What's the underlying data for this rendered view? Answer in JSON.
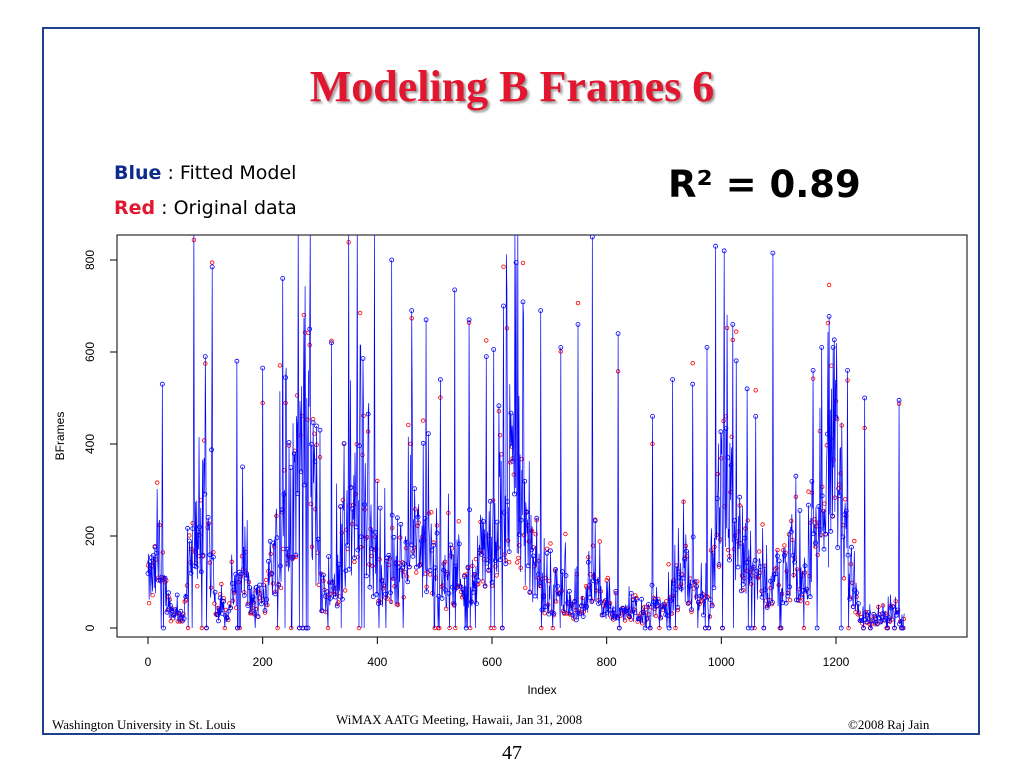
{
  "slide": {
    "title": "Modeling B Frames 6",
    "legend": {
      "blue_key": "Blue",
      "blue_text": " : Fitted Model",
      "red_key": "Red",
      "red_text": "  :  Original data"
    },
    "r_squared": "R² = 0.89",
    "footer_left": "Washington University in St. Louis",
    "footer_center": "WiMAX AATG Meeting, Hawaii, Jan 31, 2008",
    "footer_right": "©2008 Raj Jain",
    "page_number": "47"
  },
  "colors": {
    "title": "#e2162e",
    "blue_series": "#0000ff",
    "red_series": "#ff0000",
    "frame": "#1f3f8f"
  },
  "chart_data": {
    "type": "line",
    "xlabel": "Index",
    "ylabel": "BFrames",
    "xlim": [
      -20,
      1340
    ],
    "ylim": [
      -20,
      880
    ],
    "x_ticks": [
      0,
      200,
      400,
      600,
      800,
      1000,
      1200
    ],
    "y_ticks": [
      0,
      200,
      400,
      600,
      800
    ],
    "n_points": 1320,
    "series": [
      {
        "color": "#0000ff",
        "style": "line with open circle markers",
        "approx_profile": [
          [
            0,
            100
          ],
          [
            20,
            120
          ],
          [
            40,
            40
          ],
          [
            60,
            20
          ],
          [
            80,
            200
          ],
          [
            100,
            240
          ],
          [
            120,
            40
          ],
          [
            140,
            20
          ],
          [
            160,
            150
          ],
          [
            180,
            60
          ],
          [
            200,
            60
          ],
          [
            220,
            160
          ],
          [
            240,
            280
          ],
          [
            260,
            300
          ],
          [
            270,
            520
          ],
          [
            280,
            420
          ],
          [
            300,
            80
          ],
          [
            320,
            60
          ],
          [
            340,
            160
          ],
          [
            360,
            250
          ],
          [
            370,
            400
          ],
          [
            380,
            220
          ],
          [
            400,
            120
          ],
          [
            420,
            100
          ],
          [
            440,
            80
          ],
          [
            460,
            200
          ],
          [
            480,
            160
          ],
          [
            500,
            120
          ],
          [
            520,
            100
          ],
          [
            540,
            140
          ],
          [
            560,
            80
          ],
          [
            580,
            150
          ],
          [
            600,
            200
          ],
          [
            620,
            260
          ],
          [
            640,
            350
          ],
          [
            660,
            200
          ],
          [
            680,
            90
          ],
          [
            700,
            60
          ],
          [
            720,
            100
          ],
          [
            740,
            40
          ],
          [
            760,
            50
          ],
          [
            780,
            80
          ],
          [
            800,
            40
          ],
          [
            820,
            30
          ],
          [
            840,
            30
          ],
          [
            860,
            20
          ],
          [
            880,
            40
          ],
          [
            900,
            40
          ],
          [
            920,
            80
          ],
          [
            940,
            120
          ],
          [
            960,
            60
          ],
          [
            980,
            40
          ],
          [
            1000,
            300
          ],
          [
            1020,
            250
          ],
          [
            1040,
            160
          ],
          [
            1060,
            120
          ],
          [
            1080,
            80
          ],
          [
            1100,
            100
          ],
          [
            1120,
            150
          ],
          [
            1140,
            80
          ],
          [
            1160,
            170
          ],
          [
            1180,
            200
          ],
          [
            1200,
            420
          ],
          [
            1220,
            160
          ],
          [
            1240,
            30
          ],
          [
            1260,
            20
          ],
          [
            1280,
            20
          ],
          [
            1300,
            30
          ],
          [
            1310,
            20
          ]
        ],
        "peaks": [
          [
            25,
            530
          ],
          [
            80,
            880
          ],
          [
            100,
            590
          ],
          [
            112,
            785
          ],
          [
            155,
            580
          ],
          [
            200,
            565
          ],
          [
            235,
            760
          ],
          [
            262,
            880
          ],
          [
            300,
            430
          ],
          [
            320,
            620
          ],
          [
            350,
            880
          ],
          [
            365,
            880
          ],
          [
            395,
            860
          ],
          [
            425,
            800
          ],
          [
            460,
            690
          ],
          [
            485,
            670
          ],
          [
            510,
            540
          ],
          [
            535,
            735
          ],
          [
            560,
            670
          ],
          [
            590,
            590
          ],
          [
            620,
            700
          ],
          [
            645,
            880
          ],
          [
            685,
            690
          ],
          [
            720,
            610
          ],
          [
            750,
            660
          ],
          [
            775,
            850
          ],
          [
            820,
            640
          ],
          [
            880,
            460
          ],
          [
            915,
            540
          ],
          [
            950,
            530
          ],
          [
            975,
            610
          ],
          [
            990,
            830
          ],
          [
            1005,
            820
          ],
          [
            1020,
            660
          ],
          [
            1045,
            520
          ],
          [
            1060,
            460
          ],
          [
            1090,
            815
          ],
          [
            1130,
            330
          ],
          [
            1160,
            560
          ],
          [
            1175,
            610
          ],
          [
            1195,
            610
          ],
          [
            1220,
            560
          ],
          [
            1250,
            500
          ],
          [
            1310,
            495
          ]
        ]
      },
      {
        "color": "#ff0000",
        "style": "open circle markers"
      }
    ]
  }
}
